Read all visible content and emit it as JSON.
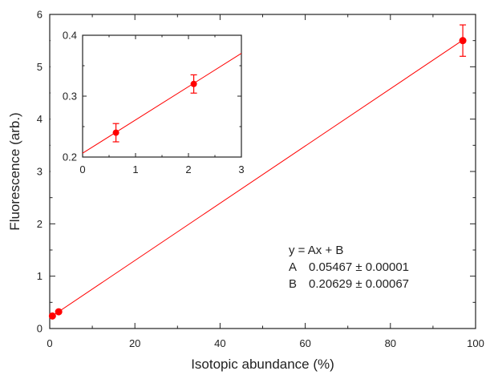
{
  "chart_data": {
    "type": "scatter",
    "xlabel": "Isotopic abundance (%)",
    "ylabel": "Fluorescence (arb.)",
    "xlim": [
      0,
      100
    ],
    "ylim": [
      0,
      6
    ],
    "x_ticks": [
      0,
      20,
      40,
      60,
      80,
      100
    ],
    "y_ticks": [
      0,
      1,
      2,
      3,
      4,
      5,
      6
    ],
    "grid": false,
    "colors": {
      "points": "#ff0000",
      "fit_line": "#ff0000",
      "axes": "#222222"
    },
    "series": [
      {
        "x": [
          0.63,
          2.1,
          97
        ],
        "y": [
          0.24,
          0.32,
          5.5
        ],
        "y_err": [
          0.015,
          0.015,
          0.3
        ]
      }
    ],
    "fit_line": {
      "x_range": [
        0,
        97
      ],
      "slope": 0.05467,
      "intercept": 0.20629
    },
    "annotation": {
      "equation": "y = Ax + B",
      "row_a_label": "A",
      "row_a_value": "0.05467 ± 0.00001",
      "row_b_label": "B",
      "row_b_value": "0.20629 ± 0.00067"
    },
    "inset": {
      "type": "scatter",
      "xlim": [
        0,
        3
      ],
      "ylim": [
        0.2,
        0.4
      ],
      "x_ticks": [
        0,
        1,
        2,
        3
      ],
      "y_ticks": [
        0.2,
        0.3,
        0.4
      ],
      "series": [
        {
          "x": [
            0.63,
            2.1
          ],
          "y": [
            0.24,
            0.32
          ],
          "y_err": [
            0.015,
            0.015
          ]
        }
      ],
      "fit_line": {
        "x_range": [
          0,
          3
        ],
        "slope": 0.05467,
        "intercept": 0.20629
      }
    }
  }
}
